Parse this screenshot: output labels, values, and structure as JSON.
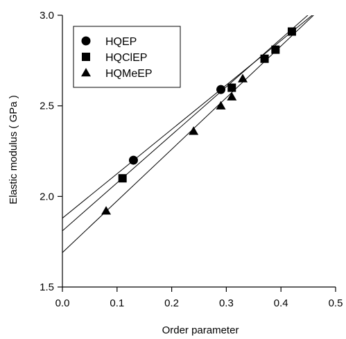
{
  "chart_data": {
    "type": "scatter",
    "title": "",
    "xlabel": "Order parameter",
    "ylabel": "Elastic modulus ( GPa )",
    "xlim": [
      0.0,
      0.5
    ],
    "ylim": [
      1.5,
      3.0
    ],
    "xticks": [
      "0.0",
      "0.1",
      "0.2",
      "0.3",
      "0.4",
      "0.5"
    ],
    "yticks": [
      "1.5",
      "2.0",
      "2.5",
      "3.0"
    ],
    "grid": false,
    "legend_position": "top-left",
    "series": [
      {
        "name": "HQEP",
        "marker": "circle",
        "x": [
          0.13,
          0.29
        ],
        "y": [
          2.2,
          2.59
        ],
        "fit": {
          "intercept": 1.88,
          "slope": 2.45
        }
      },
      {
        "name": "HQClEP",
        "marker": "square",
        "x": [
          0.11,
          0.31,
          0.37,
          0.39,
          0.42
        ],
        "y": [
          2.1,
          2.6,
          2.76,
          2.81,
          2.91
        ],
        "fit": {
          "intercept": 1.81,
          "slope": 2.65
        }
      },
      {
        "name": "HQMeEP",
        "marker": "triangle",
        "x": [
          0.08,
          0.24,
          0.29,
          0.31,
          0.33
        ],
        "y": [
          1.92,
          2.36,
          2.5,
          2.55,
          2.65
        ],
        "fit": {
          "intercept": 1.69,
          "slope": 2.85
        }
      }
    ]
  }
}
